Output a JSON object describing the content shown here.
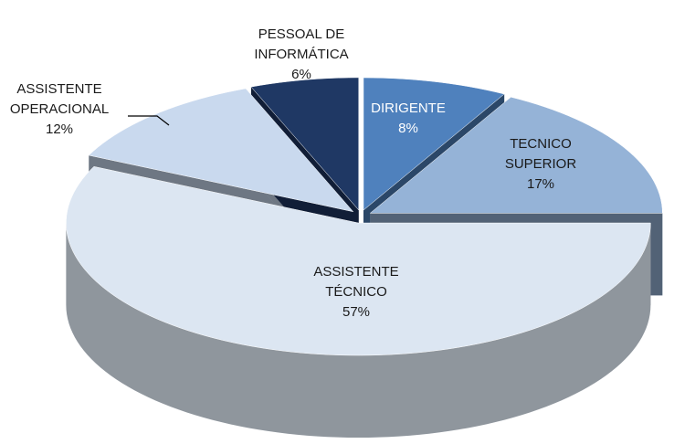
{
  "chart_data": {
    "type": "pie3d",
    "categories": [
      "DIRIGENTE",
      "TECNICO SUPERIOR",
      "ASSISTENTE TÉCNICO",
      "ASSISTENTE OPERACIONAL",
      "PESSOAL DE INFORMÁTICA"
    ],
    "values": [
      8,
      17,
      57,
      12,
      6
    ],
    "value_labels": [
      "8%",
      "17%",
      "57%",
      "12%",
      "6%"
    ],
    "colors": [
      "#4f81bd",
      "#95b3d7",
      "#dce6f2",
      "#c9d9ee",
      "#1f3864"
    ]
  }
}
